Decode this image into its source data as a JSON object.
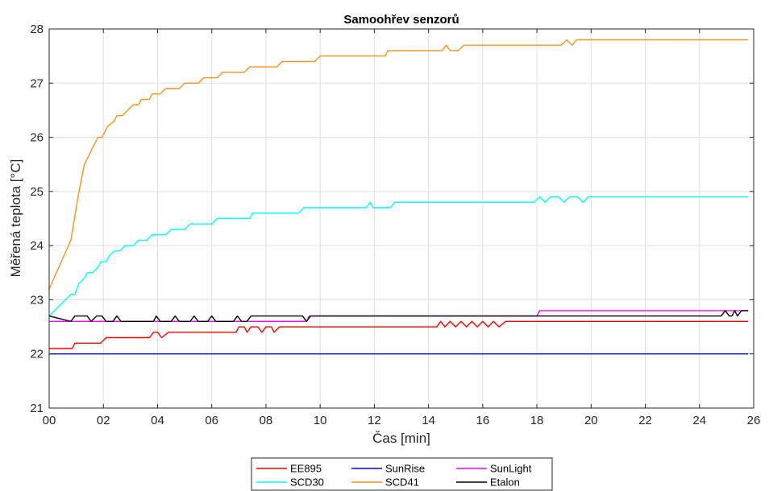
{
  "chart_data": {
    "type": "line",
    "title": "Samoohřev senzorů",
    "xlabel": "Čas [min]",
    "ylabel": "Měřená teplota [°C]",
    "xlim": [
      0,
      26
    ],
    "ylim": [
      21,
      28
    ],
    "xticks": [
      0,
      2,
      4,
      6,
      8,
      10,
      12,
      14,
      16,
      18,
      20,
      22,
      24,
      26
    ],
    "xtick_labels": [
      "00",
      "02",
      "04",
      "06",
      "08",
      "10",
      "12",
      "14",
      "16",
      "18",
      "20",
      "22",
      "24",
      "26"
    ],
    "yticks": [
      21,
      22,
      23,
      24,
      25,
      26,
      27,
      28
    ],
    "ytick_labels": [
      "21",
      "22",
      "23",
      "24",
      "25",
      "26",
      "27",
      "28"
    ],
    "grid": true,
    "legend_position": "bottom",
    "series": [
      {
        "name": "EE895",
        "color": "#ff0000",
        "points": [
          [
            0,
            22.1
          ],
          [
            0.85,
            22.1
          ],
          [
            0.95,
            22.2
          ],
          [
            1.9,
            22.2
          ],
          [
            2.1,
            22.3
          ],
          [
            3.7,
            22.3
          ],
          [
            3.85,
            22.4
          ],
          [
            4.0,
            22.4
          ],
          [
            4.15,
            22.3
          ],
          [
            4.4,
            22.4
          ],
          [
            6.9,
            22.4
          ],
          [
            7.0,
            22.5
          ],
          [
            7.2,
            22.5
          ],
          [
            7.3,
            22.4
          ],
          [
            7.45,
            22.5
          ],
          [
            7.7,
            22.5
          ],
          [
            7.85,
            22.4
          ],
          [
            8.0,
            22.5
          ],
          [
            8.2,
            22.5
          ],
          [
            8.3,
            22.4
          ],
          [
            8.5,
            22.5
          ],
          [
            14.3,
            22.5
          ],
          [
            14.45,
            22.6
          ],
          [
            14.6,
            22.5
          ],
          [
            14.8,
            22.6
          ],
          [
            15.0,
            22.5
          ],
          [
            15.2,
            22.6
          ],
          [
            15.4,
            22.5
          ],
          [
            15.6,
            22.6
          ],
          [
            15.8,
            22.5
          ],
          [
            16.0,
            22.6
          ],
          [
            16.2,
            22.5
          ],
          [
            16.4,
            22.6
          ],
          [
            16.6,
            22.5
          ],
          [
            16.85,
            22.6
          ],
          [
            25.8,
            22.6
          ]
        ]
      },
      {
        "name": "SunRise",
        "color": "#0000ff",
        "points": [
          [
            0,
            22.0
          ],
          [
            25.8,
            22.0
          ]
        ]
      },
      {
        "name": "SunLight",
        "color": "#ff00ff",
        "points": [
          [
            0,
            22.6
          ],
          [
            9.5,
            22.6
          ],
          [
            9.6,
            22.7
          ],
          [
            18.0,
            22.7
          ],
          [
            18.1,
            22.8
          ],
          [
            25.8,
            22.8
          ]
        ]
      },
      {
        "name": "SCD30",
        "color": "#00ffff",
        "points": [
          [
            0,
            22.7
          ],
          [
            0.8,
            23.1
          ],
          [
            0.95,
            23.1
          ],
          [
            1.1,
            23.3
          ],
          [
            1.3,
            23.4
          ],
          [
            1.4,
            23.5
          ],
          [
            1.6,
            23.5
          ],
          [
            1.8,
            23.6
          ],
          [
            1.9,
            23.7
          ],
          [
            2.1,
            23.7
          ],
          [
            2.2,
            23.8
          ],
          [
            2.4,
            23.9
          ],
          [
            2.6,
            23.9
          ],
          [
            2.8,
            24.0
          ],
          [
            3.1,
            24.0
          ],
          [
            3.3,
            24.1
          ],
          [
            3.6,
            24.1
          ],
          [
            3.8,
            24.2
          ],
          [
            4.3,
            24.2
          ],
          [
            4.5,
            24.3
          ],
          [
            5.0,
            24.3
          ],
          [
            5.2,
            24.4
          ],
          [
            6.0,
            24.4
          ],
          [
            6.2,
            24.5
          ],
          [
            7.4,
            24.5
          ],
          [
            7.5,
            24.6
          ],
          [
            9.2,
            24.6
          ],
          [
            9.4,
            24.7
          ],
          [
            11.7,
            24.7
          ],
          [
            11.85,
            24.8
          ],
          [
            11.95,
            24.7
          ],
          [
            12.6,
            24.7
          ],
          [
            12.75,
            24.8
          ],
          [
            17.9,
            24.8
          ],
          [
            18.1,
            24.9
          ],
          [
            18.3,
            24.8
          ],
          [
            18.5,
            24.9
          ],
          [
            18.8,
            24.9
          ],
          [
            19.0,
            24.8
          ],
          [
            19.2,
            24.9
          ],
          [
            19.5,
            24.9
          ],
          [
            19.7,
            24.8
          ],
          [
            19.9,
            24.9
          ],
          [
            25.8,
            24.9
          ]
        ]
      },
      {
        "name": "SCD41",
        "color": "#f7941d",
        "points": [
          [
            0,
            23.2
          ],
          [
            0.8,
            24.1
          ],
          [
            1.1,
            25.0
          ],
          [
            1.3,
            25.5
          ],
          [
            1.6,
            25.8
          ],
          [
            1.8,
            26.0
          ],
          [
            1.95,
            26.0
          ],
          [
            2.15,
            26.2
          ],
          [
            2.4,
            26.3
          ],
          [
            2.5,
            26.4
          ],
          [
            2.7,
            26.4
          ],
          [
            2.9,
            26.5
          ],
          [
            3.1,
            26.6
          ],
          [
            3.3,
            26.6
          ],
          [
            3.4,
            26.7
          ],
          [
            3.7,
            26.7
          ],
          [
            3.8,
            26.8
          ],
          [
            4.1,
            26.8
          ],
          [
            4.3,
            26.9
          ],
          [
            4.8,
            26.9
          ],
          [
            5.0,
            27.0
          ],
          [
            5.5,
            27.0
          ],
          [
            5.7,
            27.1
          ],
          [
            6.2,
            27.1
          ],
          [
            6.4,
            27.2
          ],
          [
            7.2,
            27.2
          ],
          [
            7.4,
            27.3
          ],
          [
            8.4,
            27.3
          ],
          [
            8.6,
            27.4
          ],
          [
            9.8,
            27.4
          ],
          [
            10.0,
            27.5
          ],
          [
            12.4,
            27.5
          ],
          [
            12.5,
            27.6
          ],
          [
            14.5,
            27.6
          ],
          [
            14.65,
            27.7
          ],
          [
            14.8,
            27.6
          ],
          [
            15.1,
            27.6
          ],
          [
            15.3,
            27.7
          ],
          [
            18.9,
            27.7
          ],
          [
            19.1,
            27.8
          ],
          [
            19.3,
            27.7
          ],
          [
            19.45,
            27.8
          ],
          [
            25.8,
            27.8
          ]
        ]
      },
      {
        "name": "Etalon",
        "color": "#000000",
        "points": [
          [
            0,
            22.7
          ],
          [
            0.8,
            22.6
          ],
          [
            0.95,
            22.7
          ],
          [
            1.4,
            22.7
          ],
          [
            1.55,
            22.6
          ],
          [
            1.75,
            22.7
          ],
          [
            1.95,
            22.7
          ],
          [
            2.1,
            22.6
          ],
          [
            2.35,
            22.6
          ],
          [
            2.5,
            22.7
          ],
          [
            2.65,
            22.6
          ],
          [
            3.85,
            22.6
          ],
          [
            3.95,
            22.7
          ],
          [
            4.1,
            22.6
          ],
          [
            4.5,
            22.6
          ],
          [
            4.65,
            22.7
          ],
          [
            4.8,
            22.6
          ],
          [
            5.2,
            22.6
          ],
          [
            5.35,
            22.7
          ],
          [
            5.5,
            22.6
          ],
          [
            5.85,
            22.6
          ],
          [
            6.0,
            22.7
          ],
          [
            6.15,
            22.6
          ],
          [
            6.8,
            22.6
          ],
          [
            6.95,
            22.7
          ],
          [
            7.1,
            22.6
          ],
          [
            7.3,
            22.6
          ],
          [
            7.45,
            22.7
          ],
          [
            9.35,
            22.7
          ],
          [
            9.5,
            22.6
          ],
          [
            9.65,
            22.7
          ],
          [
            24.8,
            22.7
          ],
          [
            24.95,
            22.8
          ],
          [
            25.1,
            22.7
          ],
          [
            25.2,
            22.7
          ],
          [
            25.3,
            22.8
          ],
          [
            25.4,
            22.7
          ],
          [
            25.55,
            22.8
          ],
          [
            25.8,
            22.8
          ]
        ]
      }
    ]
  }
}
